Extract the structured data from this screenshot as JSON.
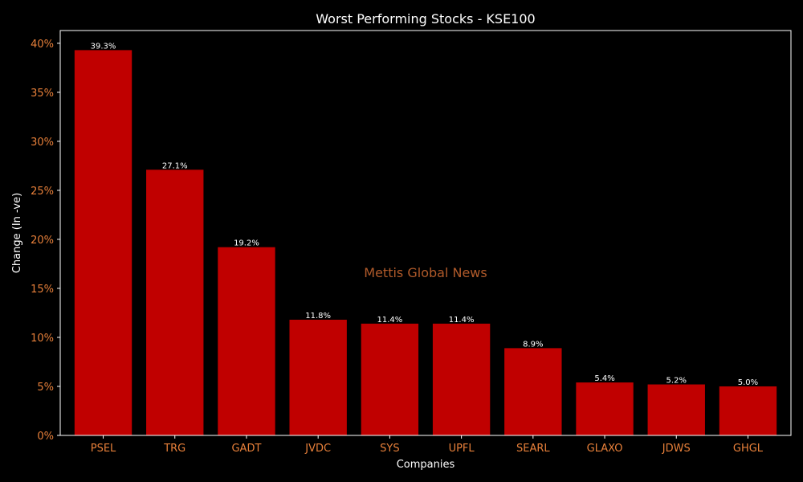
{
  "chart_data": {
    "type": "bar",
    "title": "Worst Performing Stocks - KSE100",
    "xlabel": "Companies",
    "ylabel": "Change (In -ve)",
    "watermark": "Mettis Global News",
    "categories": [
      "PSEL",
      "TRG",
      "GADT",
      "JVDC",
      "SYS",
      "UPFL",
      "SEARL",
      "GLAXO",
      "JDWS",
      "GHGL"
    ],
    "values": [
      39.3,
      27.1,
      19.2,
      11.8,
      11.4,
      11.4,
      8.9,
      5.4,
      5.2,
      5.0
    ],
    "value_labels": [
      "39.3%",
      "27.1%",
      "19.2%",
      "11.8%",
      "11.4%",
      "11.4%",
      "8.9%",
      "5.4%",
      "5.2%",
      "5.0%"
    ],
    "yticks": [
      0,
      5,
      10,
      15,
      20,
      25,
      30,
      35,
      40
    ],
    "ytick_labels": [
      "0%",
      "5%",
      "10%",
      "15%",
      "20%",
      "25%",
      "30%",
      "35%",
      "40%"
    ],
    "ylim": [
      0,
      41.3
    ],
    "grid": false,
    "colors": {
      "background": "#000000",
      "bar": "#c00000",
      "tick_label": "#e8803a",
      "axis_label": "#ffffff",
      "title": "#ffffff",
      "spine": "#ffffff",
      "data_label": "#ffffff",
      "watermark": "#b05a2a"
    }
  }
}
